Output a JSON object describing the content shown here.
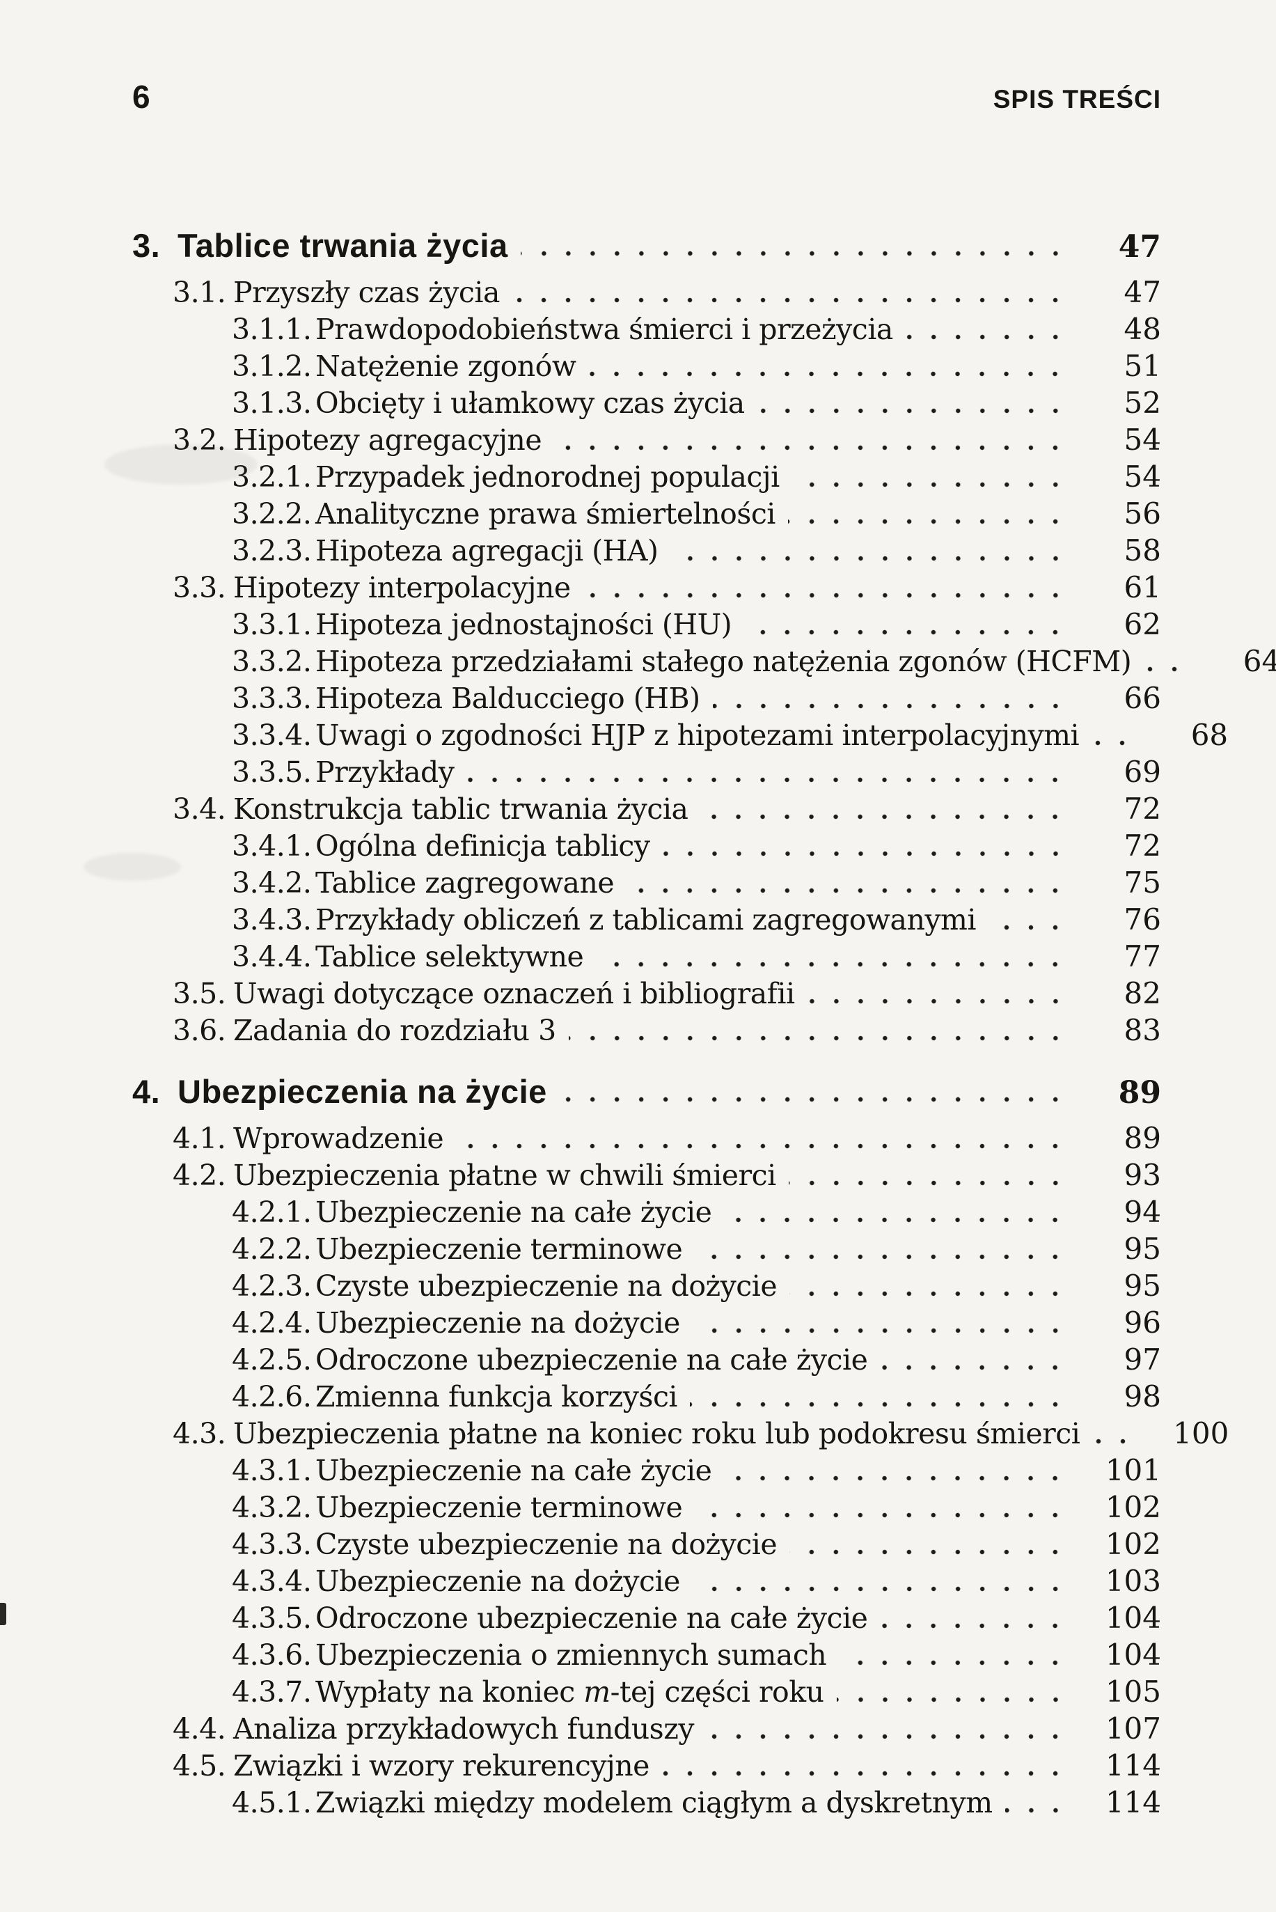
{
  "page": {
    "number": "6",
    "header_right": "SPIS TREŚCI"
  },
  "colors": {
    "paper": "#f5f4f0",
    "ink": "#171614"
  },
  "toc": {
    "chapters": [
      {
        "num": "3.",
        "title": "Tablice trwania życia",
        "page": "47",
        "entries": [
          {
            "num": "3.1.",
            "title": "Przyszły czas życia",
            "page": "47",
            "level": 2
          },
          {
            "num": "3.1.1.",
            "title": "Prawdopodobieństwa śmierci i przeżycia",
            "page": "48",
            "level": 3
          },
          {
            "num": "3.1.2.",
            "title": "Natężenie zgonów",
            "page": "51",
            "level": 3
          },
          {
            "num": "3.1.3.",
            "title": "Obcięty i ułamkowy czas życia",
            "page": "52",
            "level": 3
          },
          {
            "num": "3.2.",
            "title": "Hipotezy agregacyjne",
            "page": "54",
            "level": 2
          },
          {
            "num": "3.2.1.",
            "title": "Przypadek jednorodnej populacji",
            "page": "54",
            "level": 3
          },
          {
            "num": "3.2.2.",
            "title": "Analityczne prawa śmiertelności",
            "page": "56",
            "level": 3
          },
          {
            "num": "3.2.3.",
            "title": "Hipoteza agregacji (HA)",
            "page": "58",
            "level": 3
          },
          {
            "num": "3.3.",
            "title": "Hipotezy interpolacyjne",
            "page": "61",
            "level": 2
          },
          {
            "num": "3.3.1.",
            "title": "Hipoteza jednostajności (HU)",
            "page": "62",
            "level": 3
          },
          {
            "num": "3.3.2.",
            "title": "Hipoteza przedziałami stałego natężenia zgonów (HCFM)",
            "page": "64",
            "level": 3
          },
          {
            "num": "3.3.3.",
            "title": "Hipoteza Balducciego (HB)",
            "page": "66",
            "level": 3
          },
          {
            "num": "3.3.4.",
            "title": "Uwagi o zgodności HJP z hipotezami interpolacyjnymi",
            "page": "68",
            "level": 3
          },
          {
            "num": "3.3.5.",
            "title": "Przykłady",
            "page": "69",
            "level": 3
          },
          {
            "num": "3.4.",
            "title": "Konstrukcja tablic trwania życia",
            "page": "72",
            "level": 2
          },
          {
            "num": "3.4.1.",
            "title": "Ogólna definicja tablicy",
            "page": "72",
            "level": 3
          },
          {
            "num": "3.4.2.",
            "title": "Tablice zagregowane",
            "page": "75",
            "level": 3
          },
          {
            "num": "3.4.3.",
            "title": "Przykłady obliczeń z tablicami zagregowanymi",
            "page": "76",
            "level": 3
          },
          {
            "num": "3.4.4.",
            "title": "Tablice selektywne",
            "page": "77",
            "level": 3
          },
          {
            "num": "3.5.",
            "title": "Uwagi dotyczące oznaczeń i bibliografii",
            "page": "82",
            "level": 2
          },
          {
            "num": "3.6.",
            "title": "Zadania do rozdziału 3",
            "page": "83",
            "level": 2
          }
        ]
      },
      {
        "num": "4.",
        "title": "Ubezpieczenia na życie",
        "page": "89",
        "entries": [
          {
            "num": "4.1.",
            "title": "Wprowadzenie",
            "page": "89",
            "level": 2
          },
          {
            "num": "4.2.",
            "title": "Ubezpieczenia płatne w chwili śmierci",
            "page": "93",
            "level": 2
          },
          {
            "num": "4.2.1.",
            "title": "Ubezpieczenie na całe życie",
            "page": "94",
            "level": 3
          },
          {
            "num": "4.2.2.",
            "title": "Ubezpieczenie terminowe",
            "page": "95",
            "level": 3
          },
          {
            "num": "4.2.3.",
            "title": "Czyste ubezpieczenie na dożycie",
            "page": "95",
            "level": 3
          },
          {
            "num": "4.2.4.",
            "title": "Ubezpieczenie na dożycie",
            "page": "96",
            "level": 3
          },
          {
            "num": "4.2.5.",
            "title": "Odroczone ubezpieczenie na całe życie",
            "page": "97",
            "level": 3
          },
          {
            "num": "4.2.6.",
            "title": "Zmienna funkcja korzyści",
            "page": "98",
            "level": 3
          },
          {
            "num": "4.3.",
            "title": "Ubezpieczenia płatne na koniec roku lub podokresu śmierci",
            "page": "100",
            "level": 2
          },
          {
            "num": "4.3.1.",
            "title": "Ubezpieczenie na całe życie",
            "page": "101",
            "level": 3
          },
          {
            "num": "4.3.2.",
            "title": "Ubezpieczenie terminowe",
            "page": "102",
            "level": 3
          },
          {
            "num": "4.3.3.",
            "title": "Czyste ubezpieczenie na dożycie",
            "page": "102",
            "level": 3
          },
          {
            "num": "4.3.4.",
            "title": "Ubezpieczenie na dożycie",
            "page": "103",
            "level": 3
          },
          {
            "num": "4.3.5.",
            "title": "Odroczone ubezpieczenie na całe życie",
            "page": "104",
            "level": 3
          },
          {
            "num": "4.3.6.",
            "title": "Ubezpieczenia o zmiennych sumach",
            "page": "104",
            "level": 3
          },
          {
            "num": "4.3.7.",
            "title_segments": [
              {
                "text": "Wypłaty na koniec "
              },
              {
                "text": "m",
                "italic": true
              },
              {
                "text": "-tej części roku"
              }
            ],
            "page": "105",
            "level": 3
          },
          {
            "num": "4.4.",
            "title": "Analiza przykładowych funduszy",
            "page": "107",
            "level": 2
          },
          {
            "num": "4.5.",
            "title": "Związki i wzory rekurencyjne",
            "page": "114",
            "level": 2
          },
          {
            "num": "4.5.1.",
            "title": "Związki między modelem ciągłym a dyskretnym",
            "page": "114",
            "level": 3
          }
        ]
      }
    ]
  }
}
